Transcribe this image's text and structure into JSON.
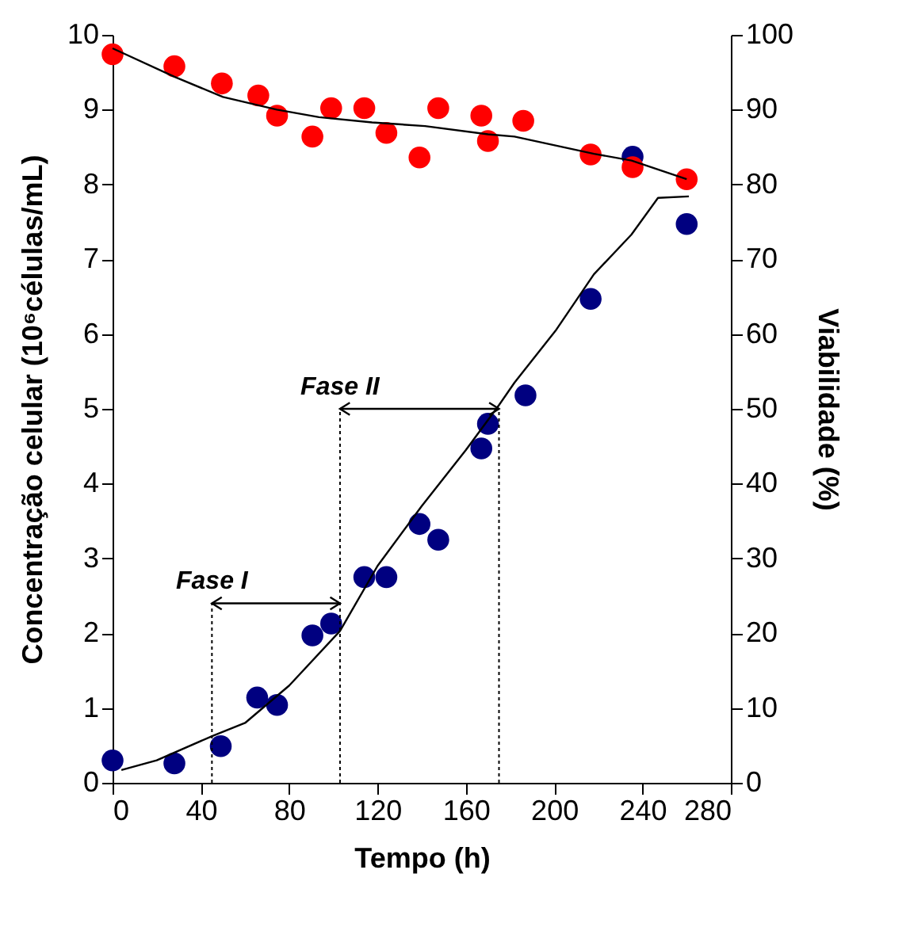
{
  "chart_data": {
    "type": "scatter",
    "xlabel": "Tempo (h)",
    "ylabel": "Concentração celular (10⁶células/mL)",
    "y2label": "Viabilidade (%)",
    "xlim": [
      0,
      280
    ],
    "xticks": [
      0,
      40,
      80,
      120,
      160,
      200,
      240,
      280
    ],
    "ylim": [
      0,
      10
    ],
    "yticks": [
      0,
      1,
      2,
      3,
      4,
      5,
      6,
      7,
      8,
      9,
      10
    ],
    "y2lim": [
      0,
      100
    ],
    "y2ticks": [
      0,
      10,
      20,
      30,
      40,
      50,
      60,
      70,
      80,
      90,
      100
    ],
    "grid": false,
    "series": [
      {
        "color": "#000080",
        "x": [
          0,
          28,
          49,
          65.5,
          74.5,
          90.5,
          99,
          114,
          124,
          139,
          147.5,
          167,
          170,
          187,
          216.5,
          235.5,
          260
        ],
        "values": [
          0.3,
          0.26,
          0.49,
          1.14,
          1.04,
          1.97,
          2.13,
          2.75,
          2.75,
          3.46,
          3.25,
          4.47,
          4.8,
          5.18,
          6.47,
          8.37,
          7.47
        ]
      },
      {
        "color": "#ff0000",
        "axis": "y2",
        "x": [
          0,
          28,
          49.5,
          66,
          74.5,
          90.5,
          99,
          114,
          124,
          139,
          147.5,
          167,
          170,
          186,
          216.5,
          235.5,
          260
        ],
        "values": [
          97.4,
          95.8,
          93.5,
          91.9,
          89.2,
          86.4,
          90.2,
          90.2,
          86.9,
          83.6,
          90.2,
          89.2,
          85.8,
          88.5,
          84,
          82.3,
          80.7
        ]
      },
      {
        "type": "line",
        "color": "#000000",
        "x": [
          4,
          20,
          45.5,
          60,
          80,
          103,
          120,
          140,
          160,
          175,
          182,
          201,
          218,
          235,
          247,
          261
        ],
        "values": [
          0.17,
          0.3,
          0.63,
          0.8,
          1.3,
          2.03,
          2.9,
          3.7,
          4.45,
          5.05,
          5.35,
          6.06,
          6.8,
          7.33,
          7.82,
          7.84
        ]
      },
      {
        "type": "line",
        "color": "#000000",
        "axis": "y2",
        "x": [
          0,
          28,
          50,
          74.4,
          93.5,
          117.5,
          141.5,
          170,
          182,
          218,
          235,
          260
        ],
        "values": [
          98.2,
          94.4,
          91.7,
          90,
          89,
          88.3,
          87.8,
          86.7,
          86.4,
          84.1,
          83.2,
          80.7
        ]
      }
    ],
    "annotations": [
      {
        "text": "Fase I",
        "x": 103,
        "y": 2.4
      },
      {
        "text": "Fase II",
        "x": 175,
        "y": 5
      }
    ],
    "ref_lines": [
      {
        "axis": "x",
        "value": 45,
        "line_style": "dotted"
      },
      {
        "axis": "x",
        "value": 103,
        "line_style": "dotted"
      },
      {
        "axis": "x",
        "value": 175,
        "line_style": "dotted"
      }
    ]
  }
}
